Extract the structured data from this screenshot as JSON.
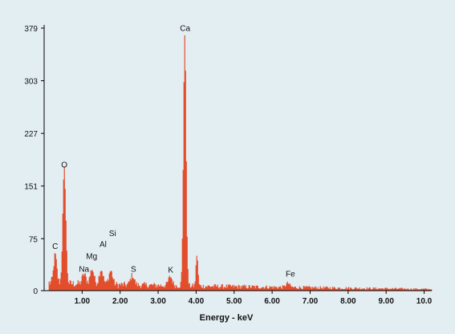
{
  "chart_data": {
    "type": "bar",
    "title": "",
    "xlabel": "Energy - keV",
    "ylabel": "",
    "xlim": [
      0,
      10.2
    ],
    "ylim": [
      0,
      379
    ],
    "x_ticks": [
      "1.00",
      "2.00",
      "3.00",
      "4.00",
      "5.00",
      "6.00",
      "7.00",
      "8.00",
      "9.00",
      "10.0"
    ],
    "y_ticks": [
      "0",
      "75",
      "151",
      "227",
      "303",
      "379"
    ],
    "grid": false,
    "series_color": "#e2401c",
    "peaks": [
      {
        "label": "C",
        "x": 0.28,
        "y": 40
      },
      {
        "label": "O",
        "x": 0.52,
        "y": 165
      },
      {
        "label": "Na",
        "x": 1.04,
        "y": 14
      },
      {
        "label": "Mg",
        "x": 1.25,
        "y": 22
      },
      {
        "label": "Al",
        "x": 1.49,
        "y": 22
      },
      {
        "label": "Si",
        "x": 1.74,
        "y": 20
      },
      {
        "label": "S",
        "x": 2.31,
        "y": 14
      },
      {
        "label": "K",
        "x": 3.31,
        "y": 13
      },
      {
        "label": "Ca",
        "x": 3.69,
        "y": 362
      },
      {
        "label": "Fe",
        "x": 6.4,
        "y": 6
      }
    ],
    "peak_labels": [
      {
        "label": "C",
        "x": 0.29,
        "y": 60
      },
      {
        "label": "O",
        "x": 0.53,
        "y": 178
      },
      {
        "label": "Na",
        "x": 1.05,
        "y": 27
      },
      {
        "label": "Mg",
        "x": 1.25,
        "y": 46
      },
      {
        "label": "Al",
        "x": 1.55,
        "y": 63
      },
      {
        "label": "Si",
        "x": 1.8,
        "y": 79
      },
      {
        "label": "S",
        "x": 2.35,
        "y": 27
      },
      {
        "label": "K",
        "x": 3.33,
        "y": 26
      },
      {
        "label": "Ca",
        "x": 3.71,
        "y": 375
      },
      {
        "label": "Fe",
        "x": 6.48,
        "y": 20
      }
    ]
  }
}
